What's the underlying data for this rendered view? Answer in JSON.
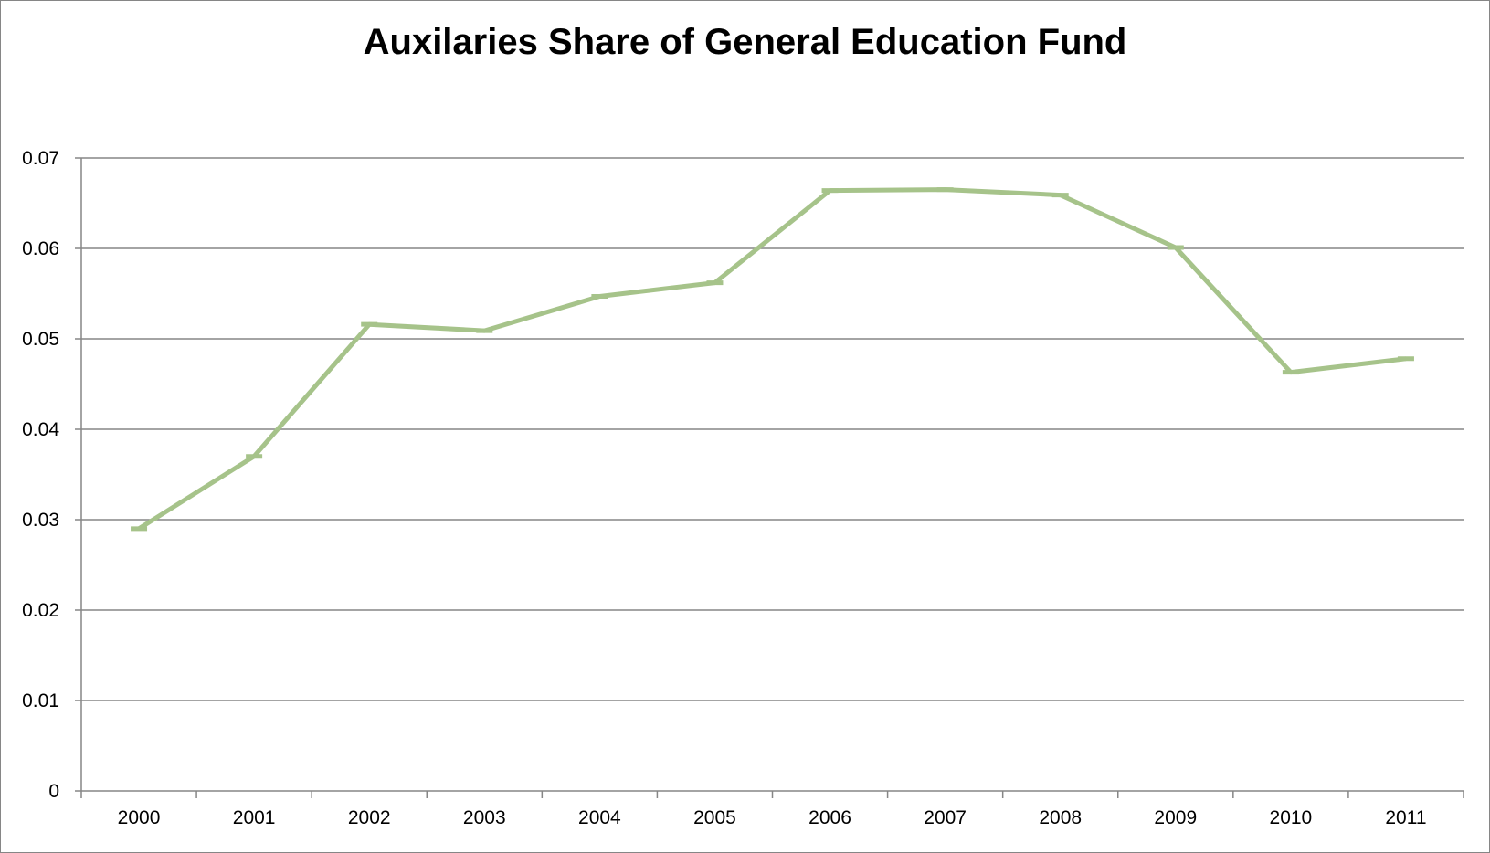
{
  "chart_data": {
    "type": "line",
    "title": "Auxilaries Share of General Education Fund",
    "xlabel": "",
    "ylabel": "",
    "categories": [
      "2000",
      "2001",
      "2002",
      "2003",
      "2004",
      "2005",
      "2006",
      "2007",
      "2008",
      "2009",
      "2010",
      "2011"
    ],
    "series": [
      {
        "values": [
          0.029,
          0.037,
          0.0516,
          0.0509,
          0.0547,
          0.0562,
          0.0664,
          0.0665,
          0.0659,
          0.0601,
          0.0463,
          0.0478
        ],
        "color": "#a6c38a"
      }
    ],
    "ylim": [
      0,
      0.07
    ],
    "yticks": [
      "0",
      "0.01",
      "0.02",
      "0.03",
      "0.04",
      "0.05",
      "0.06",
      "0.07"
    ],
    "grid": true,
    "legend": "none",
    "colors": {
      "gridline": "#868686",
      "axis": "#868686"
    }
  }
}
